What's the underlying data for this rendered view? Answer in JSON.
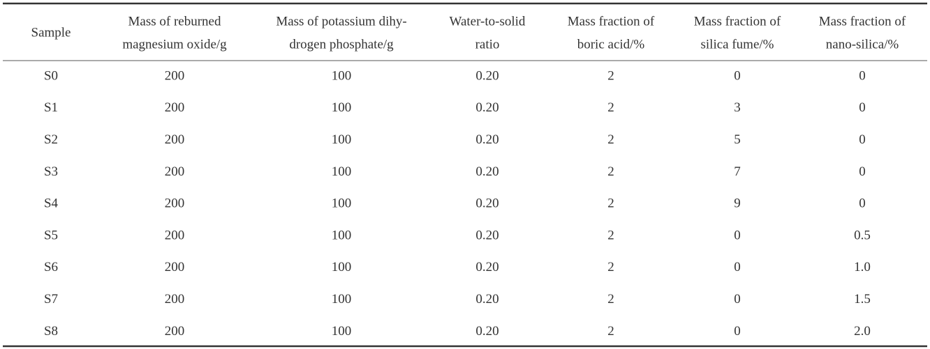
{
  "table": {
    "header": [
      [
        "Sample"
      ],
      [
        "Mass of reburned",
        "magnesium oxide/g"
      ],
      [
        "Mass of potassium dihy-",
        "drogen phosphate/g"
      ],
      [
        "Water-to-solid",
        "ratio"
      ],
      [
        "Mass fraction of",
        "boric acid/%"
      ],
      [
        "Mass fraction of",
        "silica fume/%"
      ],
      [
        "Mass fraction of",
        "nano-silica/%"
      ]
    ],
    "rows": [
      [
        "S0",
        "200",
        "100",
        "0.20",
        "2",
        "0",
        "0"
      ],
      [
        "S1",
        "200",
        "100",
        "0.20",
        "2",
        "3",
        "0"
      ],
      [
        "S2",
        "200",
        "100",
        "0.20",
        "2",
        "5",
        "0"
      ],
      [
        "S3",
        "200",
        "100",
        "0.20",
        "2",
        "7",
        "0"
      ],
      [
        "S4",
        "200",
        "100",
        "0.20",
        "2",
        "9",
        "0"
      ],
      [
        "S5",
        "200",
        "100",
        "0.20",
        "2",
        "0",
        "0.5"
      ],
      [
        "S6",
        "200",
        "100",
        "0.20",
        "2",
        "0",
        "1.0"
      ],
      [
        "S7",
        "200",
        "100",
        "0.20",
        "2",
        "0",
        "1.5"
      ],
      [
        "S8",
        "200",
        "100",
        "0.20",
        "2",
        "0",
        "2.0"
      ]
    ]
  }
}
